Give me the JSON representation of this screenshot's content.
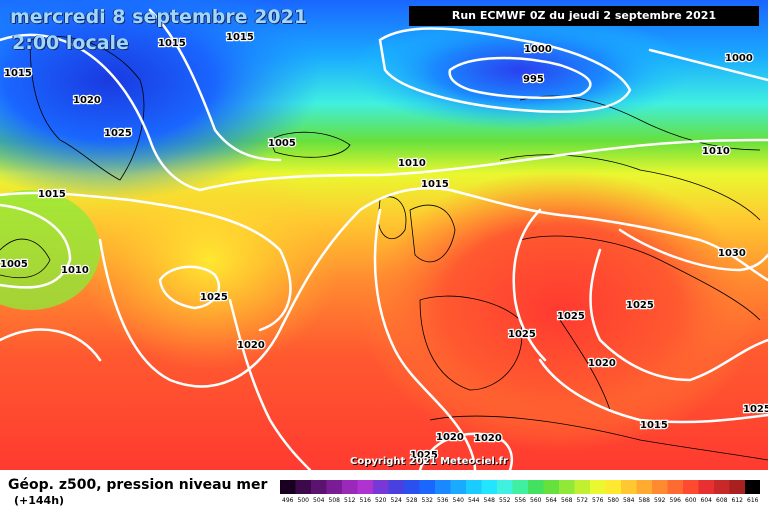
{
  "header": {
    "date": "mercredi 8 septembre 2021",
    "time": "2:00 locale",
    "run": "Run ECMWF 0Z du jeudi 2 septembre 2021"
  },
  "footer": {
    "field": "Géop. z500, pression niveau mer",
    "lead": "(+144h)",
    "copyright": "Copyright 2021 Meteociel.fr"
  },
  "pressure_labels": [
    "1015",
    "1015",
    "1020",
    "1025",
    "1015",
    "1005",
    "1010",
    "1015",
    "1025",
    "1020",
    "1005",
    "1000",
    "995",
    "1000",
    "1010",
    "1015",
    "1010",
    "1025",
    "1025",
    "1025",
    "1020",
    "1030",
    "1025",
    "1015",
    "1020",
    "1025",
    "1020"
  ],
  "legend": {
    "ticks": [
      "496",
      "500",
      "504",
      "508",
      "512",
      "516",
      "520",
      "524",
      "528",
      "532",
      "536",
      "540",
      "544",
      "548",
      "552",
      "556",
      "560",
      "564",
      "568",
      "572",
      "576",
      "580",
      "584",
      "588",
      "592",
      "596",
      "600",
      "604",
      "608",
      "612",
      "616"
    ],
    "colors": [
      "#1a0020",
      "#3c0a4a",
      "#5a1470",
      "#7a1c96",
      "#9a28b8",
      "#b032d0",
      "#7838d8",
      "#4a40e0",
      "#2a50f0",
      "#1a66ff",
      "#1a88ff",
      "#1aaaff",
      "#1accff",
      "#22e6ff",
      "#40f0e0",
      "#40f0a0",
      "#44e060",
      "#66e03c",
      "#90e838",
      "#c0f030",
      "#eaf830",
      "#ffe830",
      "#ffc830",
      "#ffaa30",
      "#ff8a30",
      "#ff6a30",
      "#ff4a30",
      "#e83030",
      "#c82828",
      "#a82020",
      "#000000"
    ]
  }
}
